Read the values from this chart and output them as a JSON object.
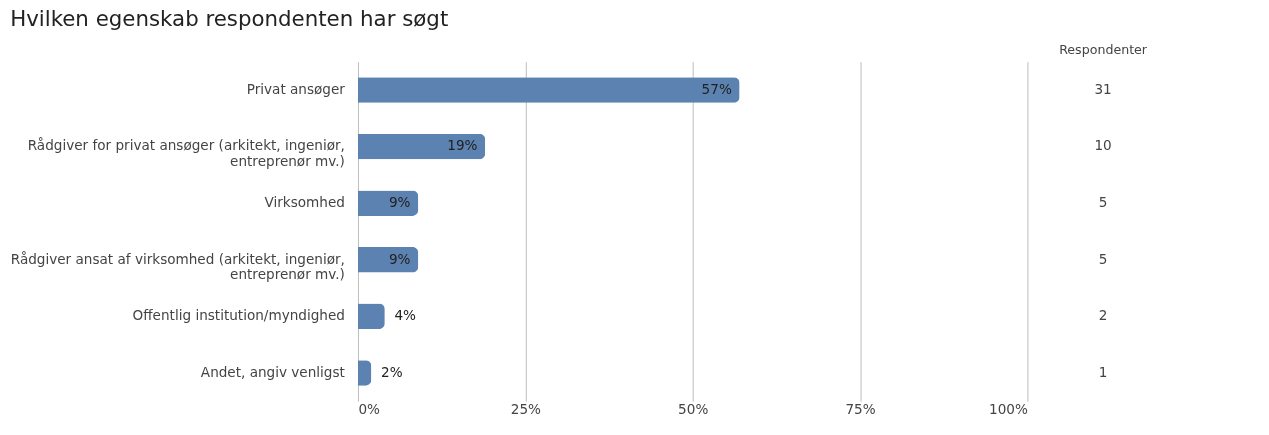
{
  "chart_data": {
    "type": "bar",
    "orientation": "horizontal",
    "title": "Hvilken egenskab respondenten har søgt",
    "categories": [
      "Privat ansøger",
      "Rådgiver for privat ansøger (arkitekt, ingeniør, entreprenør mv.)",
      "Virksomhed",
      "Rådgiver ansat af virksomhed (arkitekt, ingeniør, entreprenør mv.)",
      "Offentlig institution/myndighed",
      "Andet, angiv venligst"
    ],
    "series": [
      {
        "color": "#5b82b0",
        "values": [
          57,
          19,
          9,
          9,
          4,
          2
        ],
        "value_labels": [
          "57%",
          "19%",
          "9%",
          "9%",
          "4%",
          "2%"
        ]
      }
    ],
    "xlim": [
      0,
      100
    ],
    "xticks": [
      {
        "value": 0,
        "label": "0%"
      },
      {
        "value": 25,
        "label": "25%"
      },
      {
        "value": 50,
        "label": "50%"
      },
      {
        "value": 75,
        "label": "75%"
      },
      {
        "value": 100,
        "label": "100%"
      }
    ],
    "grid": "x",
    "annotations": [
      "Respondenter",
      "31",
      "10",
      "5",
      "5",
      "2",
      "1"
    ]
  }
}
